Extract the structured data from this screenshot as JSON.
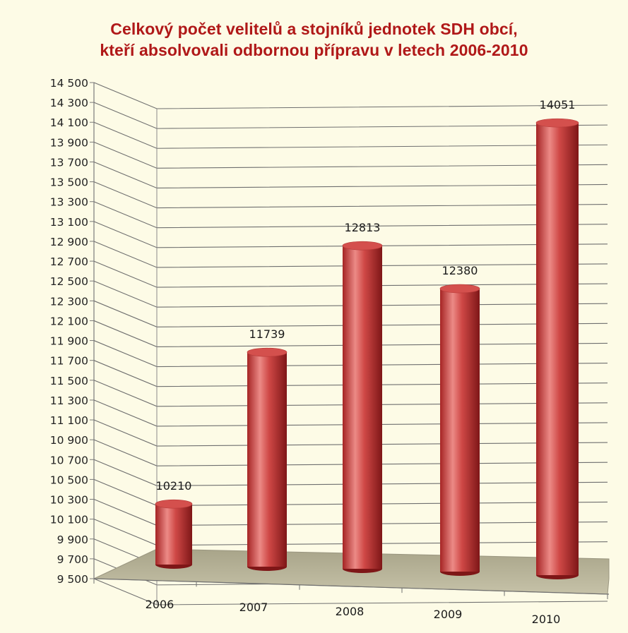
{
  "chart_data": {
    "type": "bar",
    "title": "Celkový počet velitelů a stojníků jednotek SDH obcí,",
    "subtitle": "kteří absolvovali odbornou přípravu v letech 2006-2010",
    "xlabel": "",
    "ylabel": "",
    "categories": [
      "2006",
      "2007",
      "2008",
      "2009",
      "2010"
    ],
    "values": [
      10210,
      11739,
      12813,
      12380,
      14051
    ],
    "value_labels": [
      "10210",
      "11739",
      "12813",
      "12380",
      "14051"
    ],
    "ylim": [
      9500,
      14500
    ],
    "yticks": [
      "9 500",
      "9 700",
      "9 900",
      "10 100",
      "10 300",
      "10 500",
      "10 700",
      "10 900",
      "11 100",
      "11 300",
      "11 500",
      "11 700",
      "11 900",
      "12 100",
      "12 300",
      "12 500",
      "12 700",
      "12 900",
      "13 100",
      "13 300",
      "13 500",
      "13 700",
      "13 900",
      "14 100",
      "14 300",
      "14 500"
    ],
    "grid": true,
    "style": "3d-cylinder",
    "colors": {
      "bar": "#c0393a",
      "bar_highlight": "#ec8a86",
      "bar_shadow": "#7e1617",
      "floor": "#b7b39a",
      "background": "#fdfbe6",
      "title": "#b01818"
    }
  }
}
